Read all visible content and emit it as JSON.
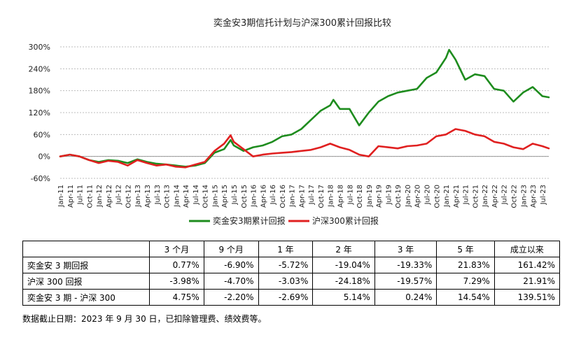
{
  "chart_data": {
    "type": "line",
    "title": "奕金安3期信托计划与沪深300累计回报比较",
    "ylim": [
      -60,
      300
    ],
    "yticks": [
      -60,
      0,
      60,
      120,
      180,
      240,
      300
    ],
    "ytick_labels": [
      "-60%",
      "0%",
      "60%",
      "120%",
      "180%",
      "240%",
      "300%"
    ],
    "ygrid": true,
    "legend_position": "bottom",
    "x_start": "2011-01",
    "x_end": "2023-09",
    "xtick_labels": [
      "Jan-11",
      "Apr-11",
      "Jul-11",
      "Oct-11",
      "Jan-12",
      "Apr-12",
      "Jul-12",
      "Oct-12",
      "Jan-13",
      "Apr-13",
      "Jul-13",
      "Oct-13",
      "Jan-14",
      "Apr-14",
      "Jul-14",
      "Oct-14",
      "Jan-15",
      "Apr-15",
      "Jul-15",
      "Oct-15",
      "Jan-16",
      "Apr-16",
      "Jul-16",
      "Oct-16",
      "Jan-17",
      "Apr-17",
      "Jul-17",
      "Oct-17",
      "Jan-18",
      "Apr-18",
      "Jul-18",
      "Oct-18",
      "Jan-19",
      "Apr-19",
      "Jul-19",
      "Oct-19",
      "Jan-20",
      "Apr-20",
      "Jul-20",
      "Oct-20",
      "Jan-21",
      "Apr-21",
      "Jul-21",
      "Oct-21",
      "Jan-22",
      "Apr-22",
      "Jul-22",
      "Oct-22",
      "Jan-23",
      "Apr-23",
      "Jul-23"
    ],
    "series": [
      {
        "name": "奕金安3期累计回报",
        "color": "#1E8C1E",
        "x": [
          "2011-01",
          "2011-04",
          "2011-07",
          "2011-10",
          "2012-01",
          "2012-04",
          "2012-07",
          "2012-10",
          "2013-01",
          "2013-04",
          "2013-07",
          "2013-10",
          "2014-01",
          "2014-04",
          "2014-07",
          "2014-10",
          "2015-01",
          "2015-04",
          "2015-06",
          "2015-07",
          "2015-10",
          "2016-01",
          "2016-04",
          "2016-07",
          "2016-10",
          "2017-01",
          "2017-04",
          "2017-07",
          "2017-10",
          "2018-01",
          "2018-02",
          "2018-04",
          "2018-07",
          "2018-10",
          "2019-01",
          "2019-04",
          "2019-07",
          "2019-10",
          "2020-01",
          "2020-04",
          "2020-07",
          "2020-10",
          "2021-01",
          "2021-02",
          "2021-04",
          "2021-07",
          "2021-10",
          "2022-01",
          "2022-04",
          "2022-07",
          "2022-10",
          "2023-01",
          "2023-04",
          "2023-07",
          "2023-09"
        ],
        "values": [
          0,
          5,
          0,
          -10,
          -15,
          -10,
          -12,
          -18,
          -8,
          -15,
          -20,
          -22,
          -25,
          -28,
          -25,
          -18,
          10,
          20,
          45,
          30,
          15,
          25,
          30,
          40,
          55,
          60,
          75,
          100,
          125,
          140,
          155,
          130,
          130,
          85,
          120,
          150,
          165,
          175,
          180,
          185,
          215,
          230,
          270,
          292,
          265,
          210,
          225,
          220,
          185,
          180,
          150,
          175,
          190,
          165,
          162
        ]
      },
      {
        "name": "沪深300累计回报",
        "color": "#E02020",
        "x": [
          "2011-01",
          "2011-04",
          "2011-07",
          "2011-10",
          "2012-01",
          "2012-04",
          "2012-07",
          "2012-10",
          "2013-01",
          "2013-04",
          "2013-07",
          "2013-10",
          "2014-01",
          "2014-04",
          "2014-07",
          "2014-10",
          "2015-01",
          "2015-04",
          "2015-06",
          "2015-07",
          "2015-10",
          "2016-01",
          "2016-04",
          "2016-07",
          "2016-10",
          "2017-01",
          "2017-04",
          "2017-07",
          "2017-10",
          "2018-01",
          "2018-04",
          "2018-07",
          "2018-10",
          "2019-01",
          "2019-04",
          "2019-07",
          "2019-10",
          "2020-01",
          "2020-04",
          "2020-07",
          "2020-10",
          "2021-01",
          "2021-04",
          "2021-07",
          "2021-10",
          "2022-01",
          "2022-04",
          "2022-07",
          "2022-10",
          "2023-01",
          "2023-04",
          "2023-07",
          "2023-09"
        ],
        "values": [
          0,
          5,
          0,
          -10,
          -18,
          -12,
          -15,
          -25,
          -10,
          -18,
          -25,
          -22,
          -28,
          -30,
          -22,
          -15,
          15,
          35,
          58,
          40,
          20,
          0,
          5,
          8,
          10,
          12,
          15,
          18,
          25,
          35,
          25,
          18,
          5,
          0,
          28,
          25,
          22,
          28,
          30,
          35,
          55,
          60,
          75,
          70,
          60,
          55,
          40,
          35,
          25,
          20,
          35,
          28,
          22
        ]
      }
    ]
  },
  "table": {
    "headers": [
      "",
      "3 个月",
      "9 个月",
      "1 年",
      "2 年",
      "3 年",
      "5 年",
      "成立以来"
    ],
    "rows": [
      [
        "奕金安 3 期回报",
        "0.77%",
        "-6.90%",
        "-5.72%",
        "-19.04%",
        "-19.33%",
        "21.83%",
        "161.42%"
      ],
      [
        "沪深 300 回报",
        "-3.98%",
        "-4.70%",
        "-3.03%",
        "-24.18%",
        "-19.57%",
        "7.29%",
        "21.91%"
      ],
      [
        "奕金安 3 期 - 沪深 300",
        "4.75%",
        "-2.20%",
        "-2.69%",
        "5.14%",
        "0.24%",
        "14.54%",
        "139.51%"
      ]
    ]
  },
  "note": "数据截止日期：2023 年 9 月 30 日，已扣除管理费、绩效费等。"
}
